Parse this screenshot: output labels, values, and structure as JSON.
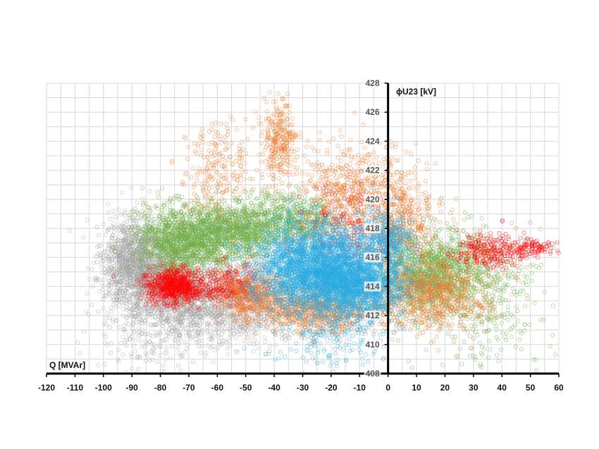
{
  "chart_data": {
    "type": "scatter",
    "xlabel": "Q [MVAr]",
    "ylabel": "ϕU23 [kV]",
    "xlim": [
      -120,
      60
    ],
    "ylim": [
      408,
      428
    ],
    "x_ticks": [
      -120,
      -110,
      -100,
      -90,
      -80,
      -70,
      -60,
      -50,
      -40,
      -30,
      -20,
      -10,
      0,
      10,
      20,
      30,
      40,
      50,
      60
    ],
    "y_ticks": [
      408,
      410,
      412,
      414,
      416,
      418,
      420,
      422,
      424,
      426,
      428
    ],
    "grid": true,
    "legend": "none",
    "series": [
      {
        "color": "#a6a6a6",
        "clusters": [
          {
            "x": -88,
            "y": 415.5,
            "sx": 6,
            "sy": 1.6,
            "n": 1400
          },
          {
            "x": -72,
            "y": 413.5,
            "sx": 8,
            "sy": 1.6,
            "n": 900
          },
          {
            "x": -55,
            "y": 412.5,
            "sx": 10,
            "sy": 1.2,
            "n": 600
          },
          {
            "x": -85,
            "y": 411,
            "sx": 10,
            "sy": 2,
            "n": 250
          }
        ]
      },
      {
        "color": "#70ad47",
        "clusters": [
          {
            "x": -72,
            "y": 417.2,
            "sx": 8,
            "sy": 1.2,
            "n": 1300
          },
          {
            "x": -55,
            "y": 417.8,
            "sx": 8,
            "sy": 1.0,
            "n": 900
          },
          {
            "x": 15,
            "y": 415,
            "sx": 10,
            "sy": 1.4,
            "n": 1300
          },
          {
            "x": 35,
            "y": 413,
            "sx": 10,
            "sy": 2.5,
            "n": 350
          },
          {
            "x": -35,
            "y": 418.6,
            "sx": 10,
            "sy": 0.9,
            "n": 700
          }
        ]
      },
      {
        "color": "#ff0000",
        "clusters": [
          {
            "x": -75,
            "y": 414,
            "sx": 5,
            "sy": 0.6,
            "n": 700
          },
          {
            "x": -55,
            "y": 414,
            "sx": 6,
            "sy": 0.7,
            "n": 300
          },
          {
            "x": 35,
            "y": 416.5,
            "sx": 6,
            "sy": 0.6,
            "n": 250
          },
          {
            "x": 50,
            "y": 416.7,
            "sx": 4,
            "sy": 0.3,
            "n": 100
          },
          {
            "x": -15,
            "y": 418,
            "sx": 10,
            "sy": 1.5,
            "n": 250
          }
        ]
      },
      {
        "color": "#ed7d31",
        "clusters": [
          {
            "x": -38,
            "y": 424,
            "sx": 3,
            "sy": 1.4,
            "n": 300
          },
          {
            "x": -60,
            "y": 422,
            "sx": 6,
            "sy": 1.5,
            "n": 220
          },
          {
            "x": -12,
            "y": 421,
            "sx": 10,
            "sy": 1.6,
            "n": 500
          },
          {
            "x": -25,
            "y": 412.5,
            "sx": 12,
            "sy": 0.9,
            "n": 900
          },
          {
            "x": 15,
            "y": 413.5,
            "sx": 10,
            "sy": 1.2,
            "n": 800
          },
          {
            "x": -48,
            "y": 413.5,
            "sx": 6,
            "sy": 1.0,
            "n": 400
          },
          {
            "x": 5,
            "y": 418.5,
            "sx": 6,
            "sy": 1.5,
            "n": 400
          }
        ]
      },
      {
        "color": "#29abe2",
        "clusters": [
          {
            "x": -25,
            "y": 415.2,
            "sx": 11,
            "sy": 1.5,
            "n": 3000
          },
          {
            "x": -10,
            "y": 414,
            "sx": 8,
            "sy": 1.2,
            "n": 1200
          },
          {
            "x": -20,
            "y": 410.5,
            "sx": 10,
            "sy": 1.2,
            "n": 200
          },
          {
            "x": 0,
            "y": 417,
            "sx": 5,
            "sy": 1.0,
            "n": 400
          }
        ]
      }
    ]
  }
}
